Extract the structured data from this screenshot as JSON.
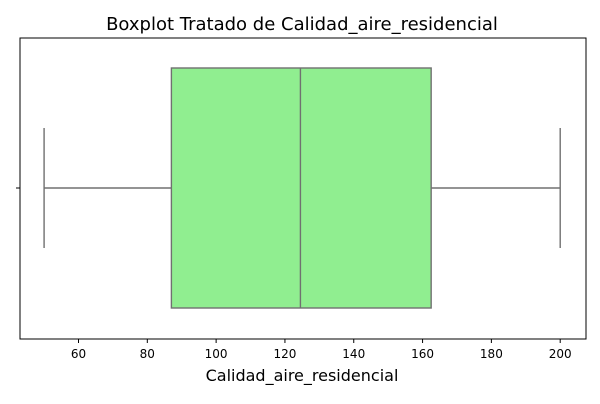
{
  "chart_data": {
    "type": "boxplot",
    "title": "Boxplot Tratado de Calidad_aire_residencial",
    "xlabel": "Calidad_aire_residencial",
    "ylabel": "",
    "orientation": "horizontal",
    "xlim": [
      43,
      207.5
    ],
    "xticks": [
      60,
      80,
      100,
      120,
      140,
      160,
      180,
      200
    ],
    "xtick_labels": [
      "60",
      "80",
      "100",
      "120",
      "140",
      "160",
      "180",
      "200"
    ],
    "grid": false,
    "series": [
      {
        "whisker_low": 50,
        "q1": 87,
        "median": 124.5,
        "q3": 162.5,
        "whisker_high": 200,
        "box_color": "#90ee90",
        "line_color": "#707070"
      }
    ]
  },
  "colors": {
    "box_fill": "#90ee90",
    "box_line": "#707070",
    "axis": "#000000"
  }
}
